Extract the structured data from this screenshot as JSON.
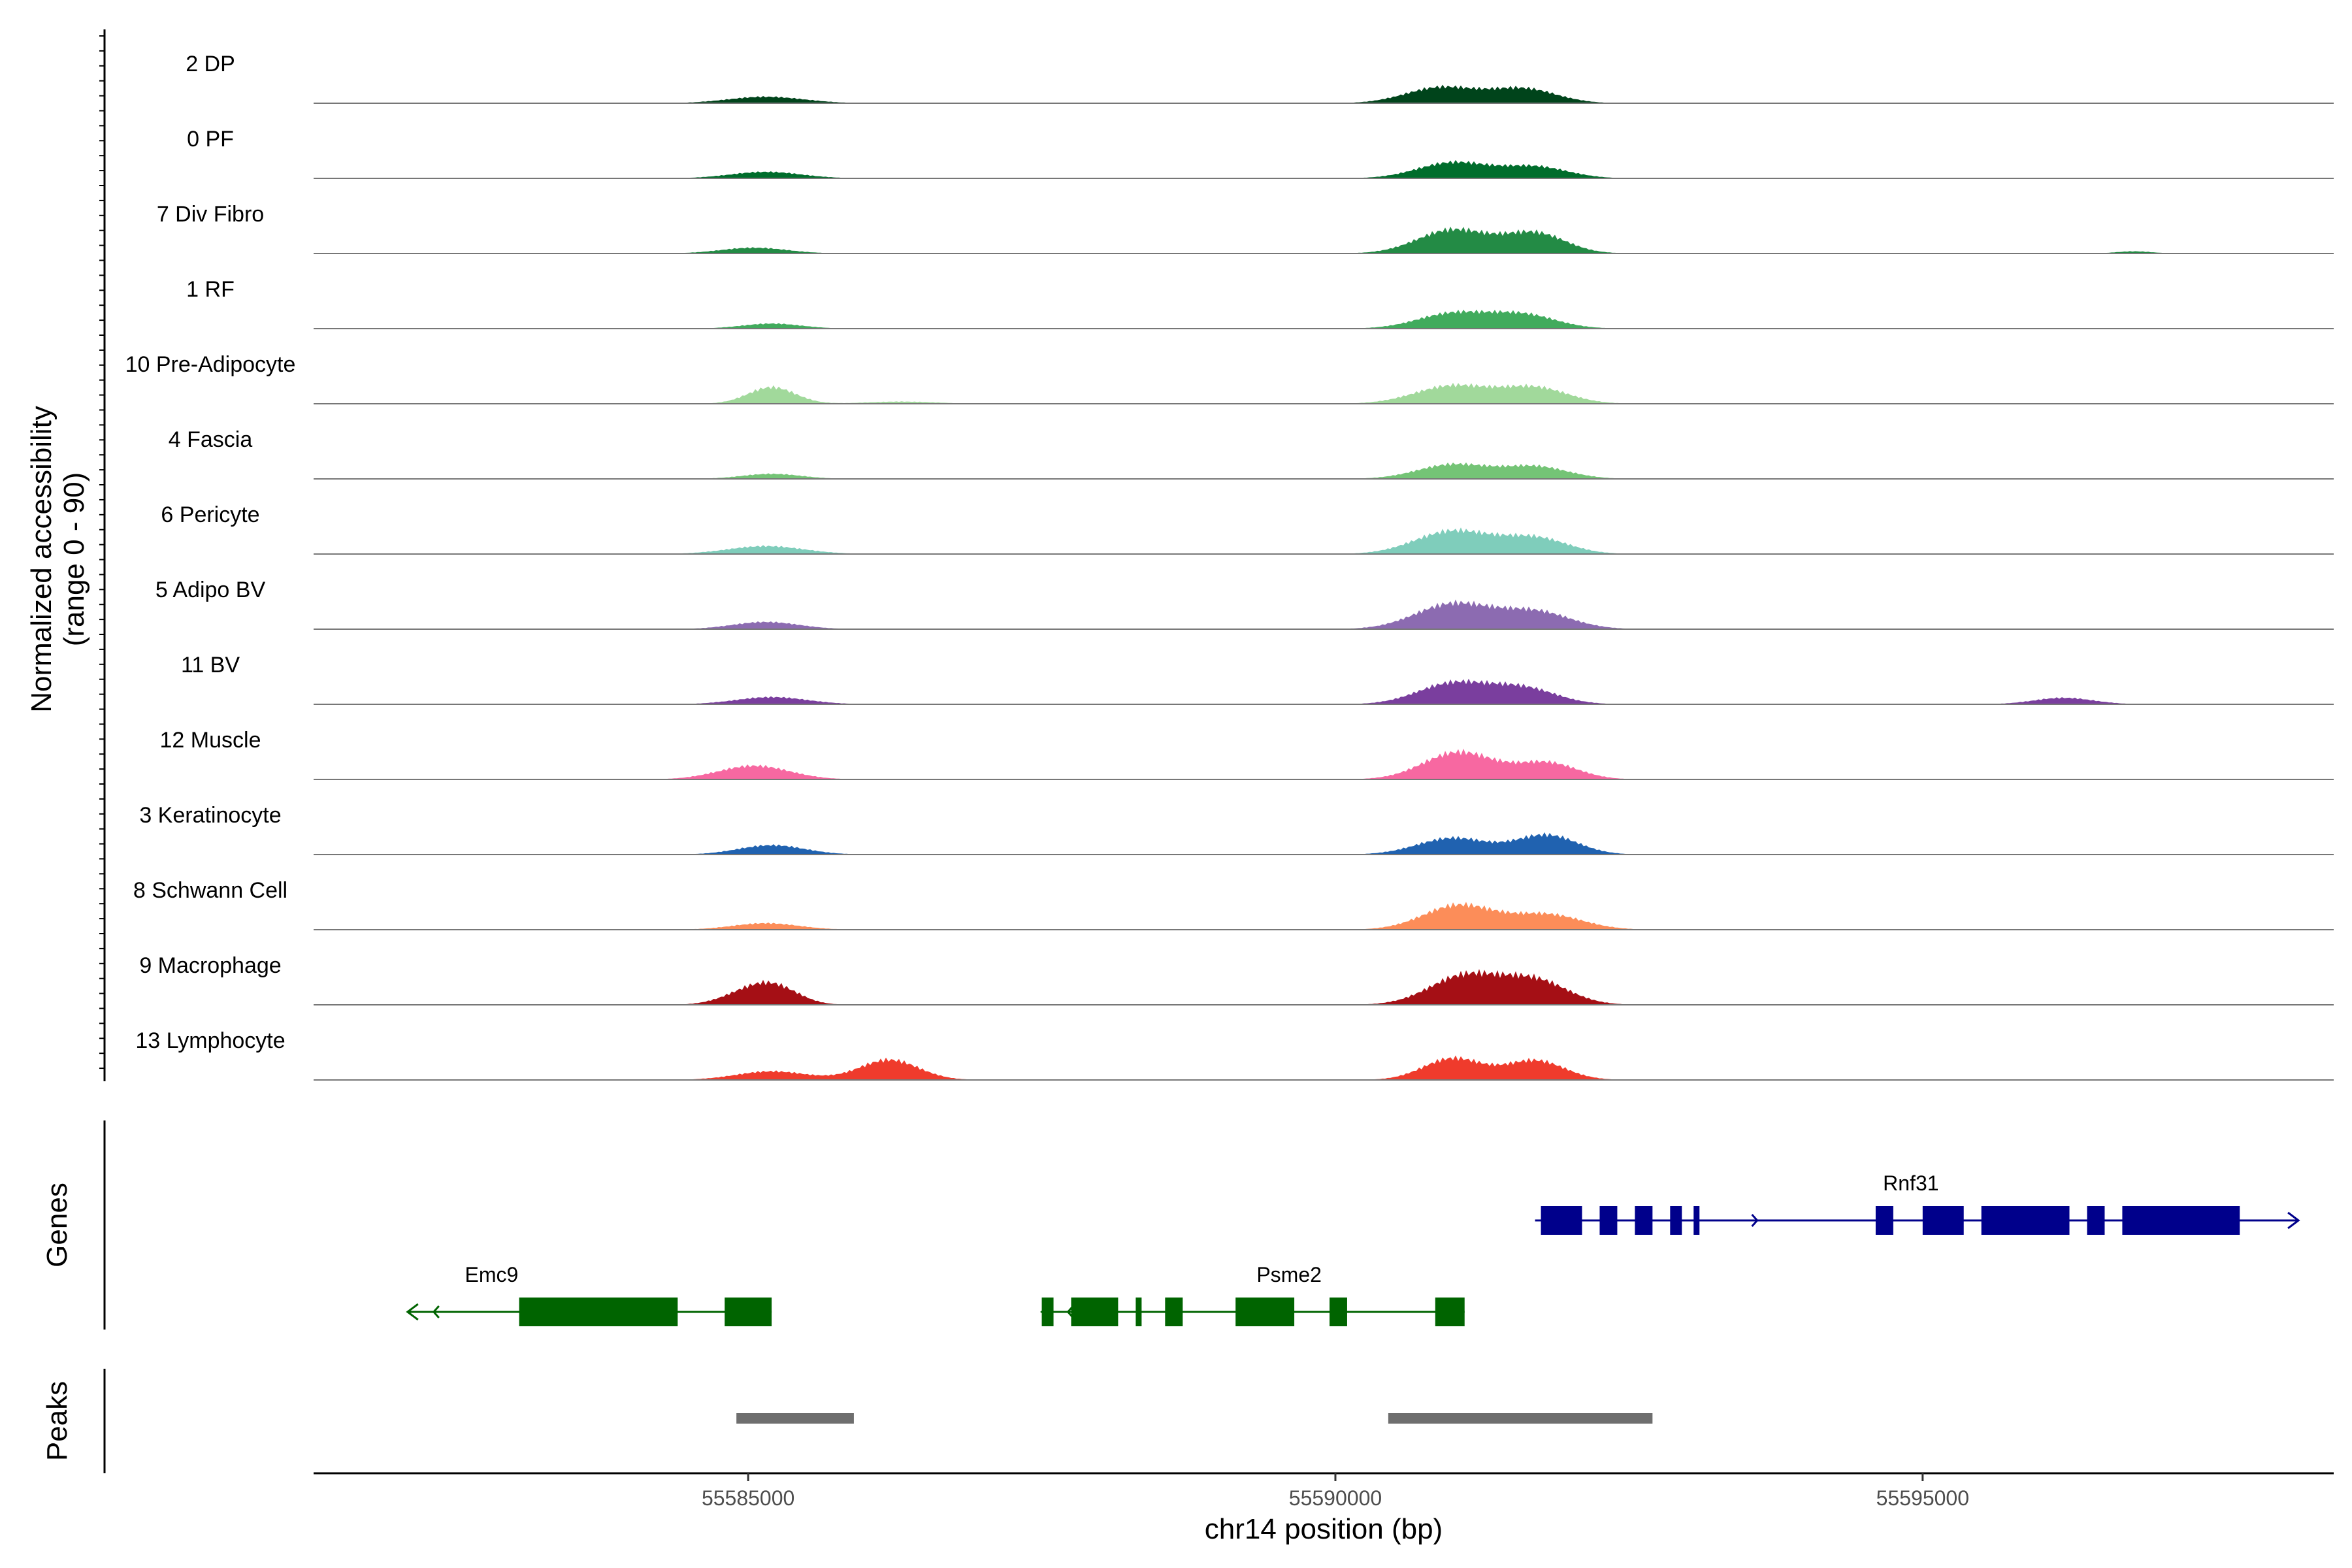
{
  "chart_data": {
    "type": "area",
    "region": {
      "chrom": "chr14",
      "start": 55581300,
      "end": 55598500
    },
    "x_axis": {
      "label": "chr14 position (bp)",
      "ticks": [
        {
          "value": 55585000,
          "label": "55585000"
        },
        {
          "value": 55590000,
          "label": "55590000"
        },
        {
          "value": 55595000,
          "label": "55595000"
        }
      ]
    },
    "coverage_panel": {
      "ylabel_line1": "Normalized accessibility",
      "ylabel_line2": "(range 0 - 90)",
      "ymax": 90
    },
    "peaks_panel_label": "Peaks",
    "genes_panel_label": "Genes",
    "tracks": [
      {
        "name": "2 DP",
        "color": "#00441b",
        "peaks": [
          [
            55585150,
            320,
            9
          ],
          [
            55590900,
            300,
            22
          ],
          [
            55591600,
            280,
            20
          ]
        ]
      },
      {
        "name": "0 PF",
        "color": "#006d2c",
        "peaks": [
          [
            55585150,
            300,
            9
          ],
          [
            55591000,
            300,
            22
          ],
          [
            55591700,
            280,
            16
          ]
        ]
      },
      {
        "name": "7 Div Fibro",
        "color": "#238b45",
        "peaks": [
          [
            55585050,
            280,
            8
          ],
          [
            55591000,
            300,
            33
          ],
          [
            55591700,
            260,
            28
          ],
          [
            55596800,
            150,
            3
          ]
        ]
      },
      {
        "name": "1 RF",
        "color": "#41ab5d",
        "peaks": [
          [
            55585200,
            250,
            7
          ],
          [
            55591000,
            300,
            21
          ],
          [
            55591600,
            280,
            19
          ]
        ]
      },
      {
        "name": "10 Pre-Adipocyte",
        "color": "#a1d99b",
        "peaks": [
          [
            55585200,
            200,
            23
          ],
          [
            55591000,
            320,
            25
          ],
          [
            55591700,
            280,
            22
          ],
          [
            55586300,
            300,
            3
          ]
        ]
      },
      {
        "name": "4 Fascia",
        "color": "#74c476",
        "peaks": [
          [
            55585200,
            250,
            7
          ],
          [
            55591000,
            300,
            20
          ],
          [
            55591700,
            280,
            17
          ]
        ]
      },
      {
        "name": "6 Pericyte",
        "color": "#7fcdbb",
        "peaks": [
          [
            55585150,
            320,
            11
          ],
          [
            55591000,
            320,
            32
          ],
          [
            55591700,
            280,
            22
          ]
        ]
      },
      {
        "name": "5 Adipo BV",
        "color": "#8c6bb1",
        "peaks": [
          [
            55585150,
            280,
            10
          ],
          [
            55591000,
            320,
            35
          ],
          [
            55591700,
            300,
            24
          ]
        ]
      },
      {
        "name": "11 BV",
        "color": "#7a3e9e",
        "peaks": [
          [
            55585200,
            300,
            10
          ],
          [
            55591000,
            300,
            29
          ],
          [
            55591600,
            280,
            22
          ],
          [
            55596200,
            250,
            9
          ]
        ]
      },
      {
        "name": "12 Muscle",
        "color": "#f768a1",
        "peaks": [
          [
            55585050,
            300,
            19
          ],
          [
            55591050,
            300,
            38
          ],
          [
            55591800,
            260,
            23
          ]
        ]
      },
      {
        "name": "3 Keratinocyte",
        "color": "#2062b0",
        "peaks": [
          [
            55585200,
            280,
            13
          ],
          [
            55591000,
            300,
            23
          ],
          [
            55591800,
            260,
            27
          ]
        ]
      },
      {
        "name": "8 Schwann Cell",
        "color": "#fc8d59",
        "peaks": [
          [
            55585150,
            280,
            9
          ],
          [
            55591050,
            300,
            34
          ],
          [
            55591800,
            300,
            21
          ]
        ]
      },
      {
        "name": "9 Macrophage",
        "color": "#a50f15",
        "peaks": [
          [
            55585000,
            220,
            17
          ],
          [
            55585250,
            200,
            20
          ],
          [
            55591100,
            300,
            40
          ],
          [
            55591700,
            280,
            33
          ]
        ]
      },
      {
        "name": "13 Lymphocyte",
        "color": "#ef3b2c",
        "peaks": [
          [
            55585200,
            300,
            12
          ],
          [
            55586200,
            250,
            28
          ],
          [
            55591000,
            250,
            30
          ],
          [
            55591700,
            250,
            27
          ]
        ]
      }
    ],
    "genes": [
      {
        "name": "Emc9",
        "strand": "-",
        "color": "#006400",
        "start": 55582100,
        "end": 55585200,
        "exons": [
          [
            55583050,
            55584400
          ],
          [
            55584800,
            55585200
          ]
        ]
      },
      {
        "name": "Psme2",
        "strand": "-",
        "color": "#006400",
        "start": 55587500,
        "end": 55591100,
        "exons": [
          [
            55587500,
            55587600
          ],
          [
            55587750,
            55588150
          ],
          [
            55588300,
            55588350
          ],
          [
            55588550,
            55588700
          ],
          [
            55589150,
            55589650
          ],
          [
            55589950,
            55590100
          ],
          [
            55590850,
            55591100
          ]
        ]
      },
      {
        "name": "Rnf31",
        "strand": "+",
        "color": "#00008b",
        "start": 55591700,
        "end": 55598200,
        "exons": [
          [
            55591750,
            55592100
          ],
          [
            55592250,
            55592400
          ],
          [
            55592550,
            55592700
          ],
          [
            55592850,
            55592950
          ],
          [
            55593050,
            55593100
          ],
          [
            55594600,
            55594750
          ],
          [
            55595000,
            55595350
          ],
          [
            55595500,
            55596250
          ],
          [
            55596400,
            55596550
          ],
          [
            55596700,
            55597700
          ]
        ]
      }
    ],
    "peaks": [
      {
        "start": 55584900,
        "end": 55585900
      },
      {
        "start": 55590450,
        "end": 55592700
      }
    ]
  }
}
